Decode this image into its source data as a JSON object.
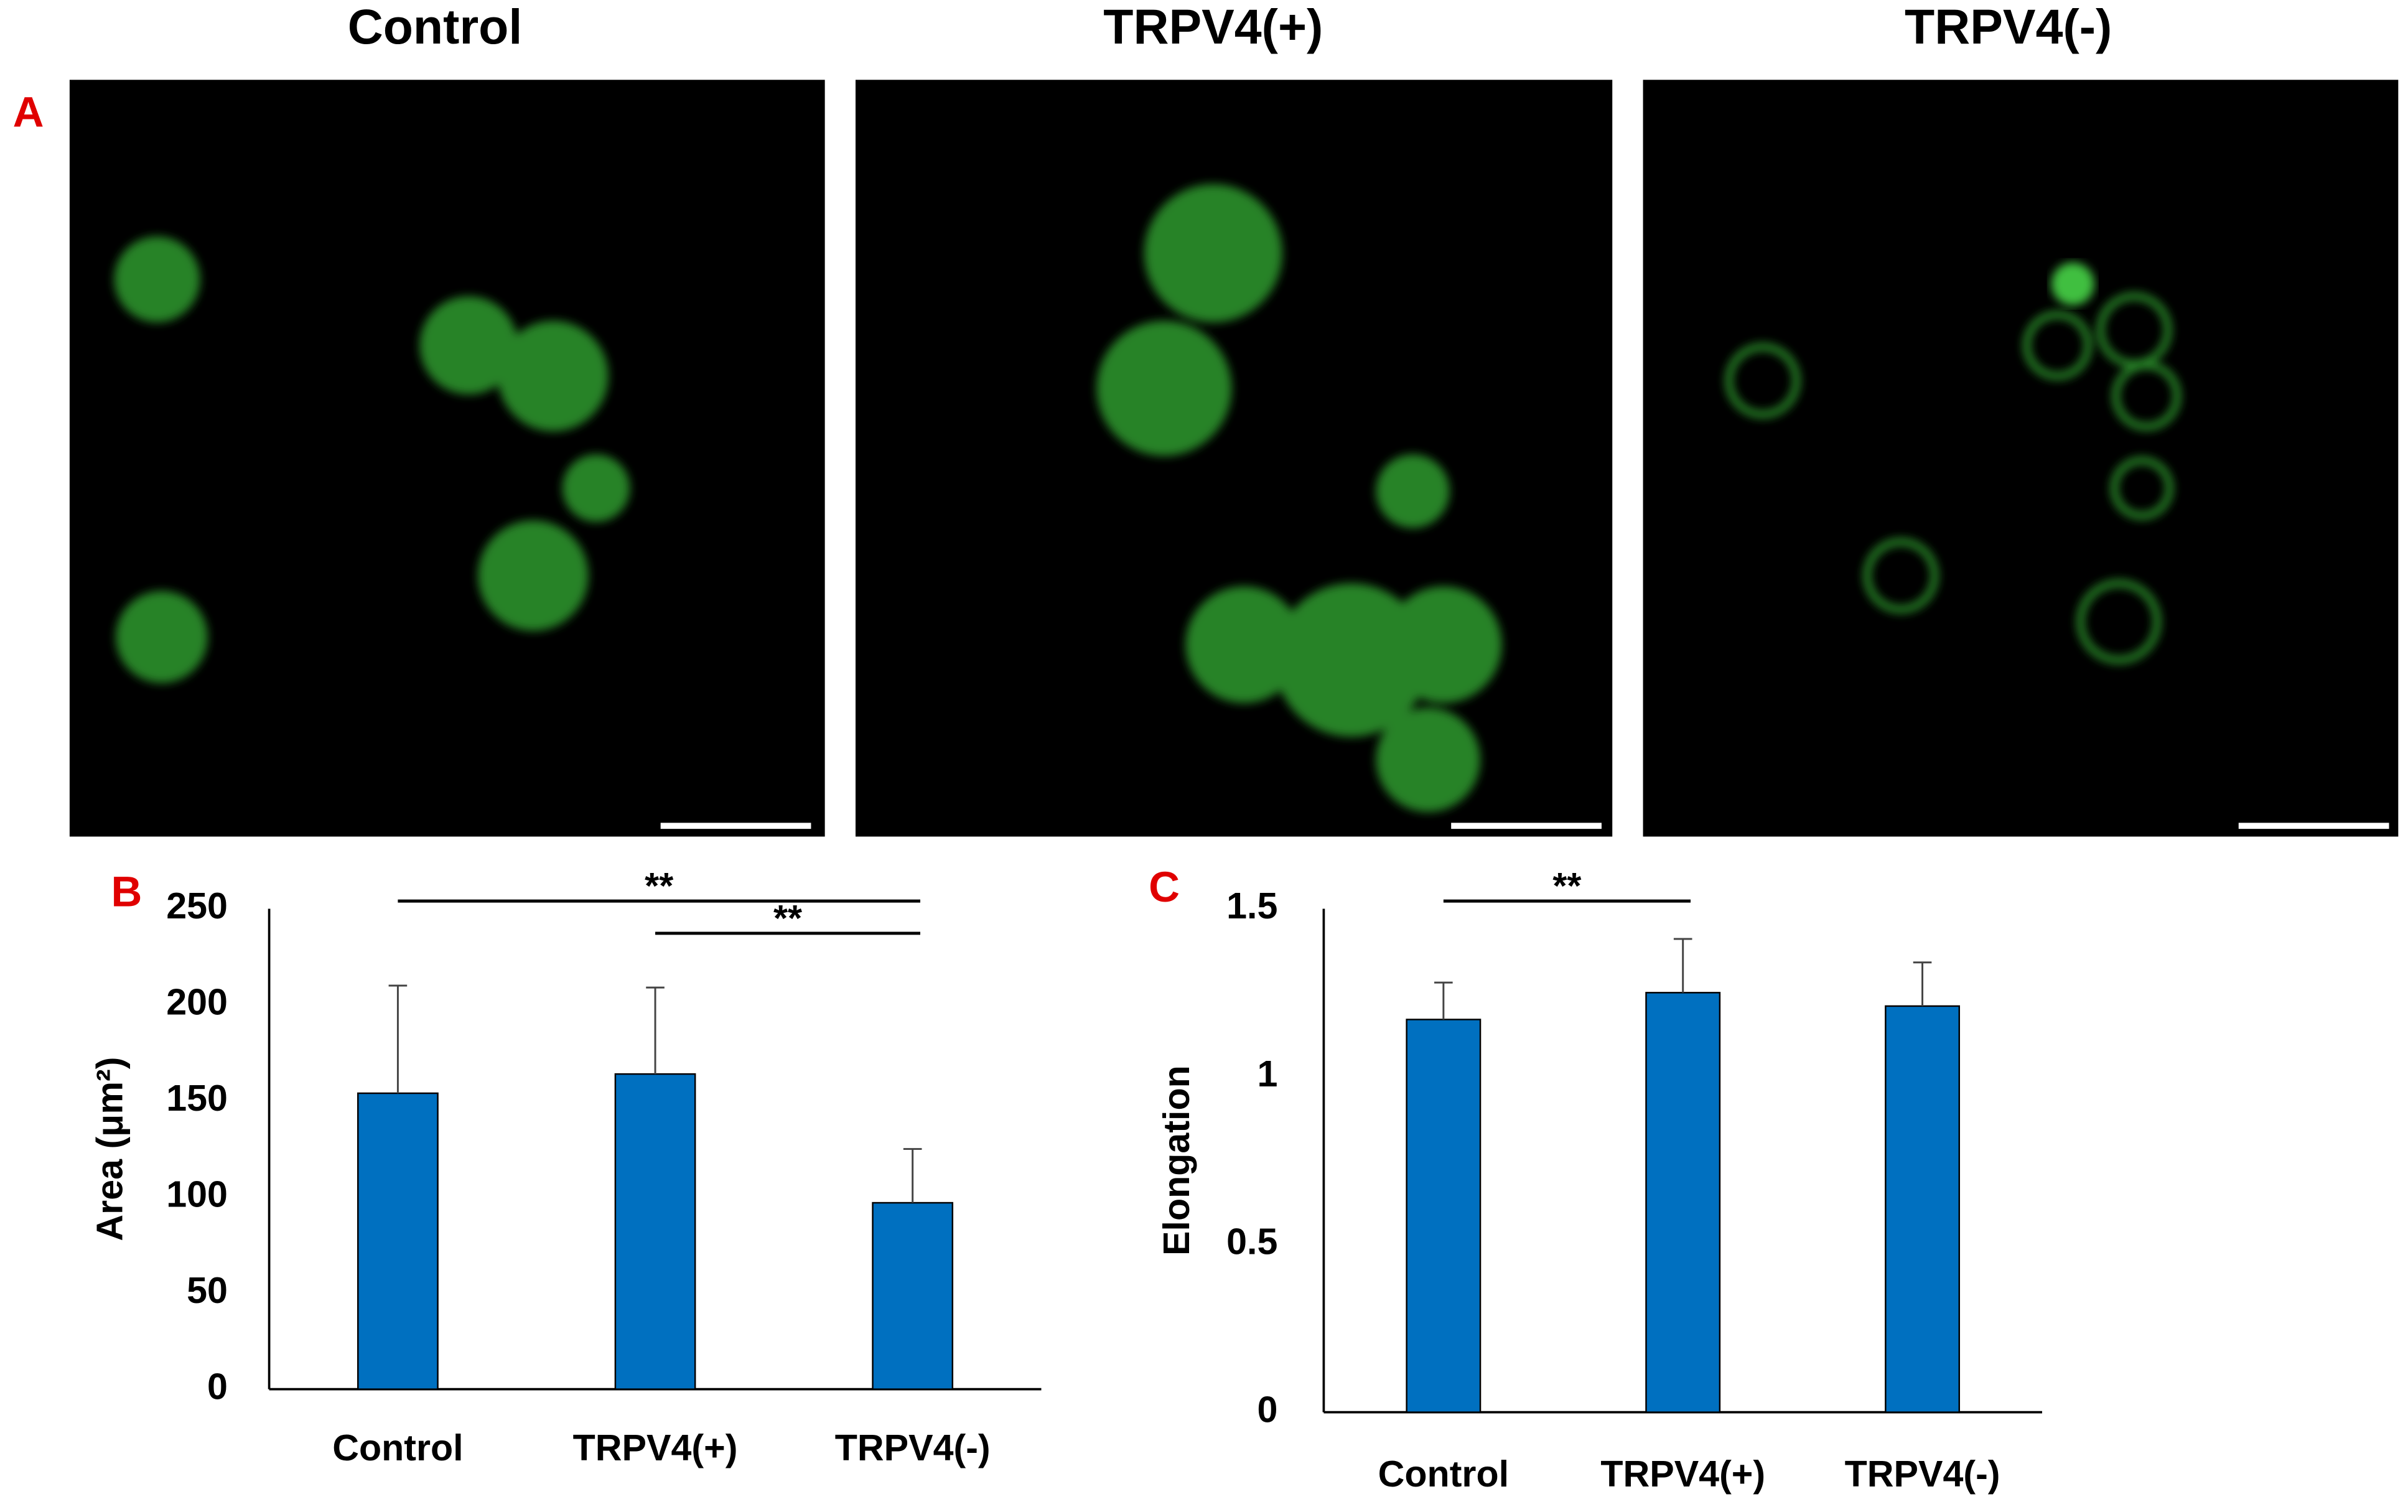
{
  "figure": {
    "panel_label": "A",
    "image_titles": [
      "Control",
      "TRPV4(+)",
      "TRPV4(-)"
    ]
  },
  "chart_data": [
    {
      "type": "bar",
      "panel_label": "B",
      "ylabel": "Area (μm²)",
      "categories": [
        "Control",
        "TRPV4(+)",
        "TRPV4(-)"
      ],
      "values": [
        154,
        164,
        97
      ],
      "errors": [
        56,
        45,
        28
      ],
      "color": "#0070c0",
      "ylim": [
        0,
        250
      ],
      "yticks": [
        0,
        50,
        100,
        150,
        200,
        250
      ],
      "grid": false,
      "significance": [
        {
          "label": "**",
          "between": [
            "Control",
            "TRPV4(-)"
          ]
        },
        {
          "label": "**",
          "between": [
            "TRPV4(+)",
            "TRPV4(-)"
          ]
        }
      ]
    },
    {
      "type": "bar",
      "panel_label": "C",
      "ylabel": "Elongation",
      "categories": [
        "Control",
        "TRPV4(+)",
        "TRPV4(-)"
      ],
      "values": [
        1.17,
        1.25,
        1.21
      ],
      "errors": [
        0.11,
        0.16,
        0.13
      ],
      "color": "#0070c0",
      "ylim": [
        0,
        1.5
      ],
      "yticks": [
        0,
        0.5,
        1,
        1.5
      ],
      "grid": false,
      "significance": [
        {
          "label": "**",
          "between": [
            "Control",
            "TRPV4(+)"
          ]
        }
      ]
    }
  ]
}
